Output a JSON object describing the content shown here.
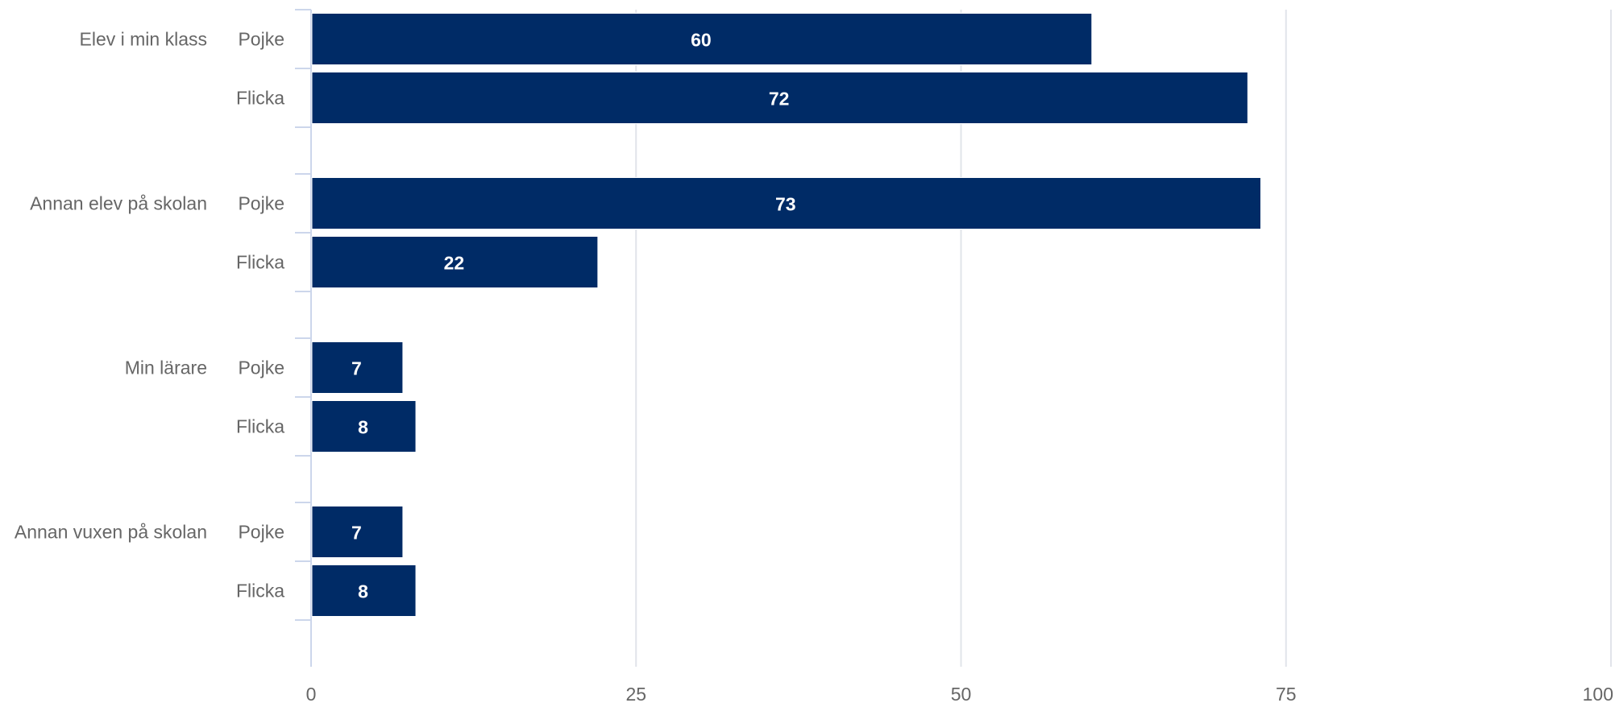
{
  "chart_data": {
    "type": "bar",
    "orientation": "horizontal",
    "title": "",
    "xlabel": "",
    "ylabel": "",
    "xlim": [
      0,
      100
    ],
    "x_ticks": [
      "0",
      "25",
      "50",
      "75",
      "100"
    ],
    "grid": true,
    "bar_color": "#002b66",
    "groups": [
      {
        "label": "Elev i min klass",
        "items": [
          {
            "label": "Pojke",
            "value": 60
          },
          {
            "label": "Flicka",
            "value": 72
          }
        ]
      },
      {
        "label": "Annan elev på skolan",
        "items": [
          {
            "label": "Pojke",
            "value": 73
          },
          {
            "label": "Flicka",
            "value": 22
          }
        ]
      },
      {
        "label": "Min lärare",
        "items": [
          {
            "label": "Pojke",
            "value": 7
          },
          {
            "label": "Flicka",
            "value": 8
          }
        ]
      },
      {
        "label": "Annan vuxen på skolan",
        "items": [
          {
            "label": "Pojke",
            "value": 7
          },
          {
            "label": "Flicka",
            "value": 8
          }
        ]
      }
    ]
  }
}
